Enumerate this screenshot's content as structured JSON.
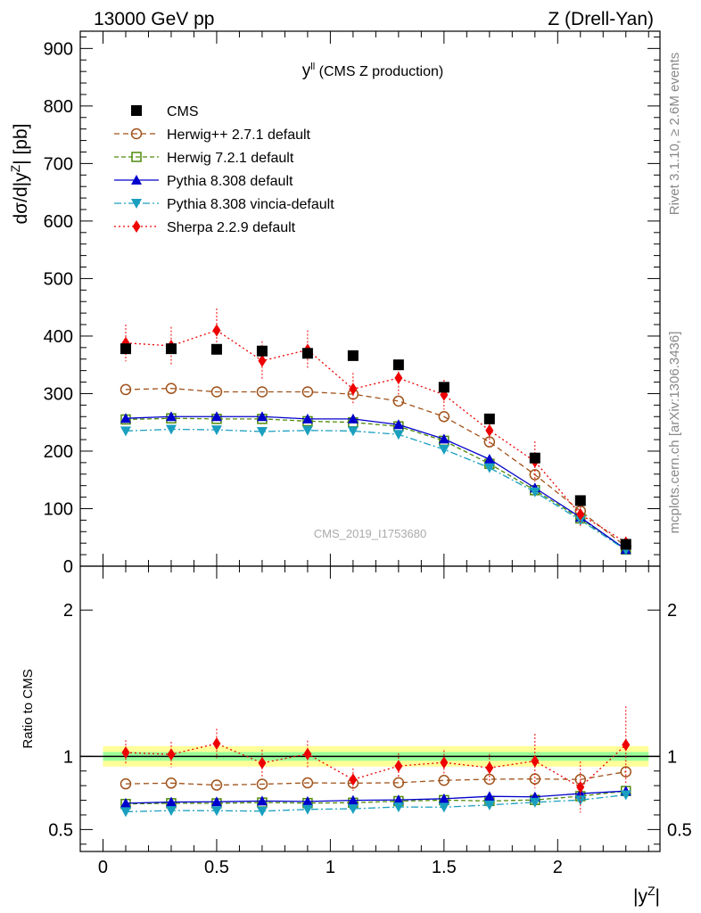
{
  "header": {
    "left": "13000 GeV pp",
    "right": "Z (Drell-Yan)"
  },
  "side_labels": {
    "rivet": "Rivet 3.1.10, ≥ 2.6M events",
    "mcplots": "mcplots.cern.ch [arXiv:1306.3436]"
  },
  "chart_data": {
    "type": "line",
    "title_main": "y",
    "title_sup": "ll",
    "title_rest": " (CMS Z production)",
    "analysis_label": "CMS_2019_I1753680",
    "xlabel": "|y",
    "xlabel_sup": "Z",
    "xlabel_end": "|",
    "ylabel": "dσ/d|y",
    "ylabel_sup": "Z",
    "ylabel_end": "| [pb]",
    "ratio_ylabel": "Ratio to CMS",
    "xlim": [
      -0.1,
      2.45
    ],
    "ylim": [
      0,
      930
    ],
    "ratio_ylim": [
      0.35,
      2.3
    ],
    "x_ticks": [
      0,
      0.5,
      1,
      1.5,
      2
    ],
    "x_tick_labels": [
      "0",
      "0.5",
      "1",
      "1.5",
      "2"
    ],
    "y_ticks": [
      0,
      100,
      200,
      300,
      400,
      500,
      600,
      700,
      800,
      900
    ],
    "y_tick_labels": [
      "0",
      "100",
      "200",
      "300",
      "400",
      "500",
      "600",
      "700",
      "800",
      "900"
    ],
    "ratio_ticks": [
      0.5,
      1,
      2
    ],
    "ratio_tick_labels": [
      "0.5",
      "1",
      "2"
    ],
    "x": [
      0.1,
      0.3,
      0.5,
      0.7,
      0.9,
      1.1,
      1.3,
      1.5,
      1.7,
      1.9,
      2.1,
      2.3
    ],
    "data": {
      "name": "CMS",
      "values": [
        378,
        378,
        377,
        374,
        370,
        366,
        350,
        311,
        256,
        188,
        114,
        38
      ]
    },
    "series": [
      {
        "name": "Herwig++ 2.7.1 default",
        "color": "#a0521a",
        "dash": "6,4",
        "marker": "circle-open",
        "values": [
          307,
          309,
          303,
          303,
          303,
          299,
          287,
          260,
          216,
          159,
          96,
          34
        ]
      },
      {
        "name": "Herwig 7.2.1 default",
        "color": "#4e8a0a",
        "dash": "5,3",
        "marker": "square-open",
        "values": [
          255,
          257,
          256,
          256,
          252,
          250,
          243,
          218,
          178,
          132,
          83,
          29
        ]
      },
      {
        "name": "Pythia 8.308 default",
        "color": "#0000cc",
        "dash": "",
        "marker": "triangle-up",
        "values": [
          257,
          260,
          260,
          260,
          256,
          256,
          246,
          221,
          186,
          136,
          85,
          29
        ]
      },
      {
        "name": "Pythia 8.308 vincia-default",
        "color": "#1a9fbf",
        "dash": "8,3,2,3",
        "marker": "triangle-down",
        "values": [
          235,
          238,
          237,
          234,
          236,
          235,
          229,
          203,
          171,
          129,
          80,
          28
        ]
      },
      {
        "name": "Sherpa 2.2.9 default",
        "color": "#ee0000",
        "dash": "2,3",
        "marker": "diamond",
        "values": [
          388,
          383,
          410,
          357,
          376,
          308,
          327,
          298,
          236,
          182,
          90,
          41
        ],
        "errors": [
          32,
          33,
          38,
          34,
          34,
          28,
          30,
          26,
          24,
          35,
          20,
          10
        ]
      }
    ],
    "ratio_band": {
      "inner": 0.03,
      "outer": 0.07
    }
  }
}
